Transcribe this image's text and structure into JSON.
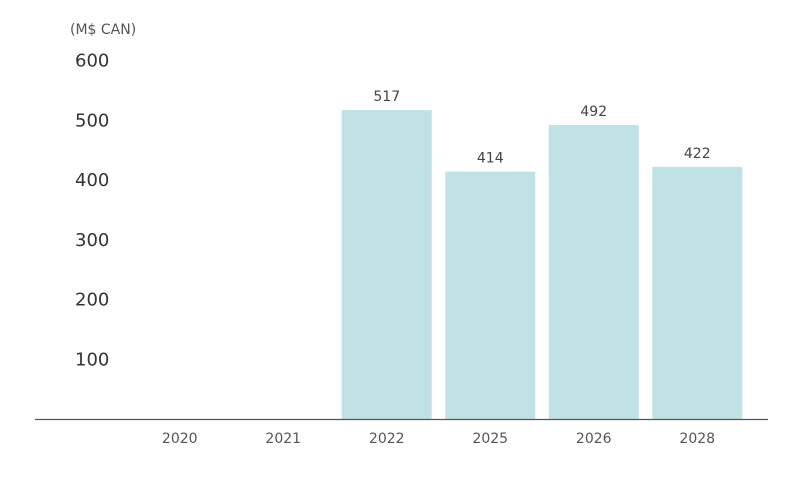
{
  "chart_data": {
    "type": "bar",
    "ylabel": "(M$ CAN)",
    "categories": [
      "2020",
      "2021",
      "2022",
      "2025",
      "2026",
      "2028"
    ],
    "values": [
      null,
      null,
      517,
      414,
      492,
      422
    ],
    "data_labels": [
      "",
      "",
      "517",
      "414",
      "492",
      "422"
    ],
    "y_ticks": [
      100,
      200,
      300,
      400,
      500,
      600
    ],
    "ylim": [
      0,
      600
    ],
    "grid": false,
    "bar_color": "#c0e2e4",
    "axis_color": "#555555"
  }
}
